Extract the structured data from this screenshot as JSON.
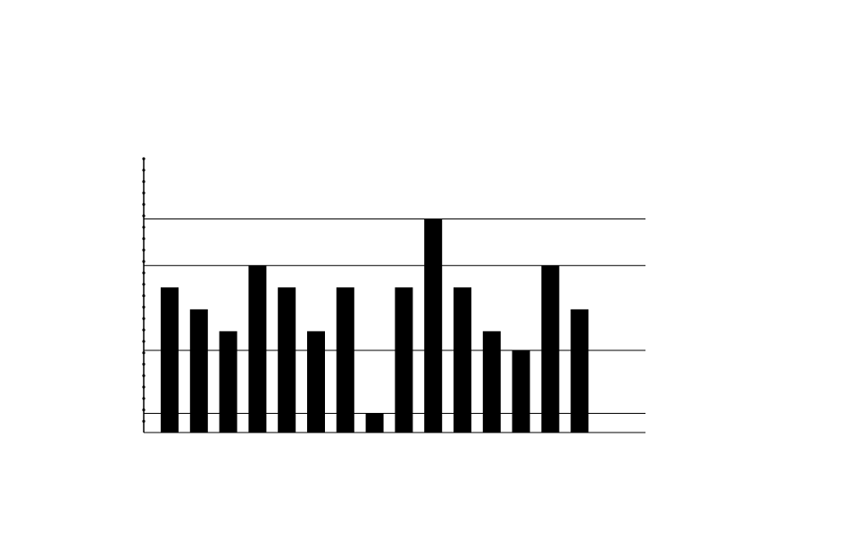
{
  "chart_data": {
    "type": "bar",
    "categories": [
      null,
      null,
      null,
      null,
      null,
      null,
      null,
      null,
      null,
      null,
      null,
      null,
      null,
      null,
      null
    ],
    "values": [
      53,
      45,
      37,
      61,
      53,
      37,
      53,
      7,
      53,
      78,
      53,
      37,
      30,
      61,
      45
    ],
    "color": "#000000",
    "ylim": [
      0,
      100
    ],
    "grid_lines": [
      7,
      30,
      61,
      78
    ]
  }
}
